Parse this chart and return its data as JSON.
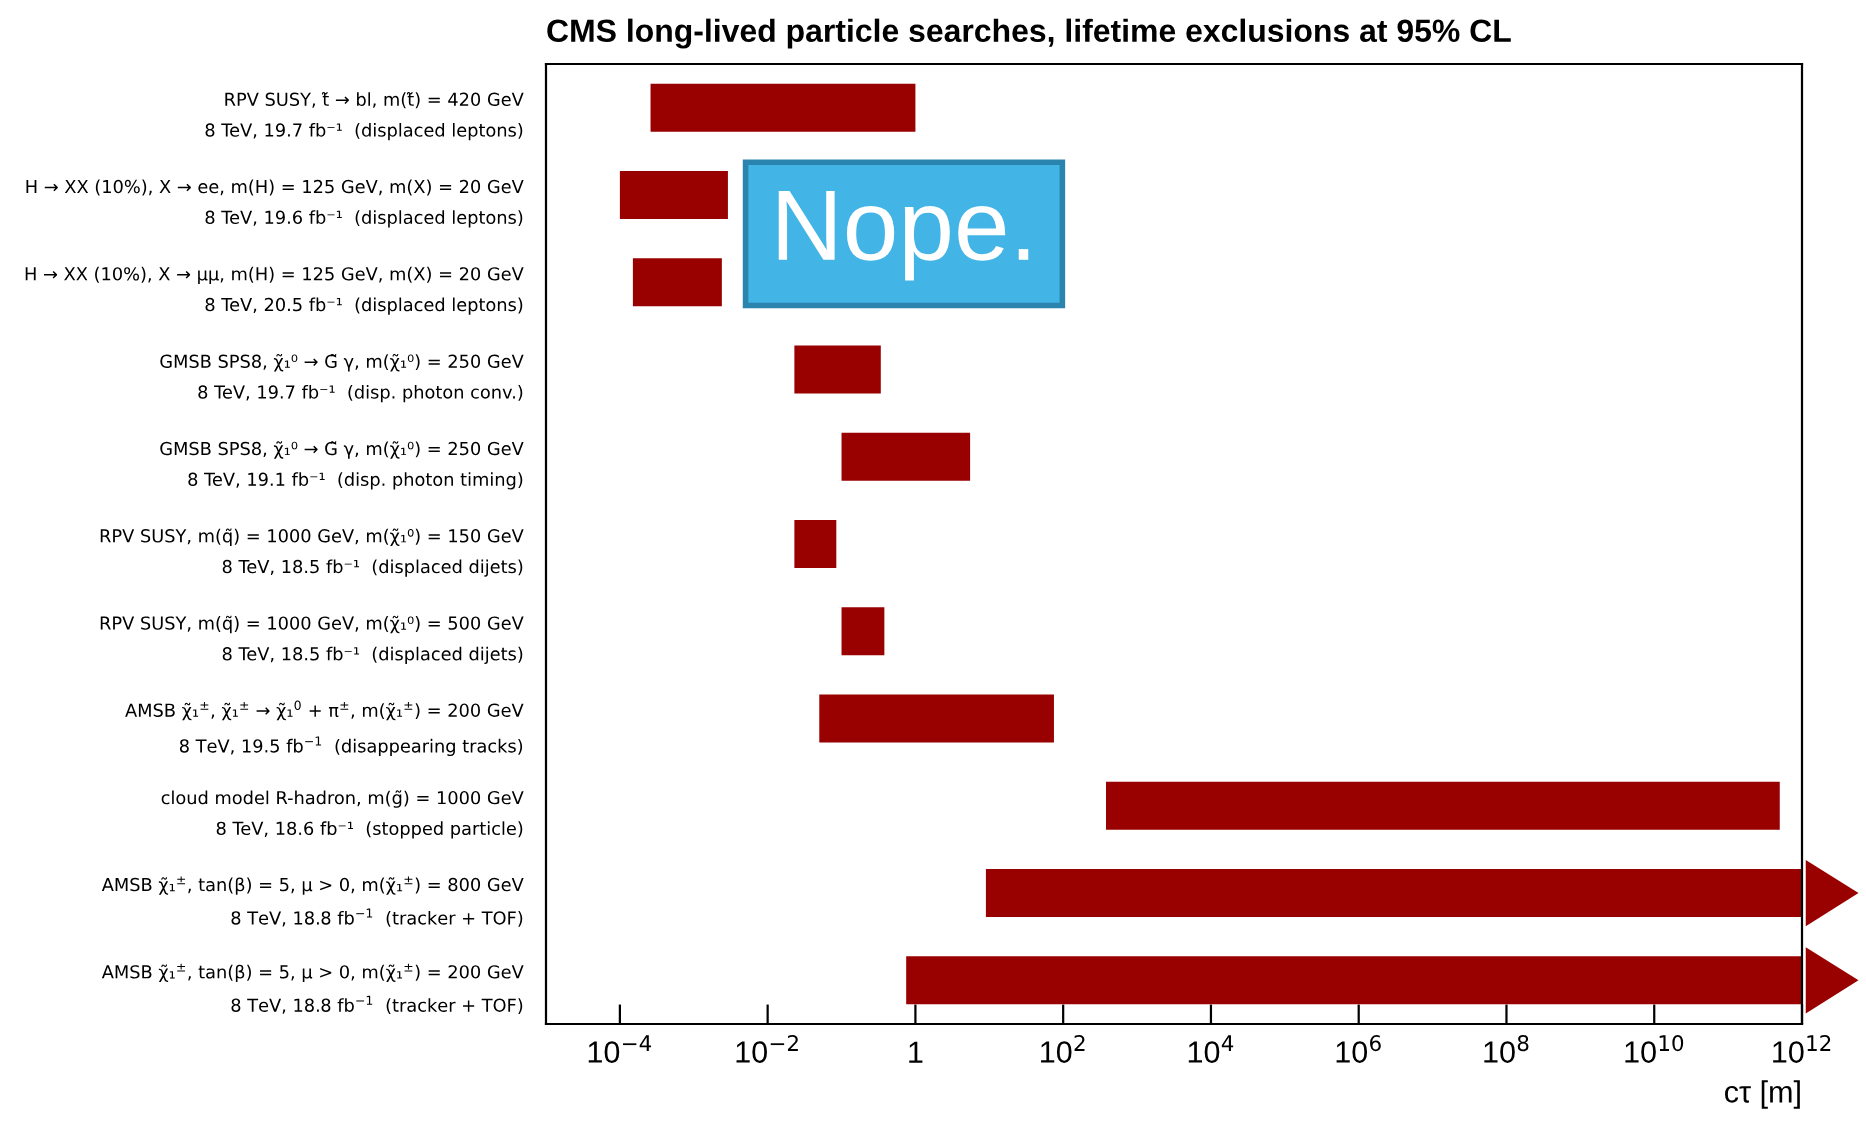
{
  "chart_data": {
    "type": "bar",
    "orientation": "horizontal",
    "title": "CMS long-lived particle searches, lifetime exclusions at 95% CL",
    "xlabel": "cτ [m]",
    "categories": [
      "RPV SUSY, t̃ → bl, m(t̃) = 420 GeV\n8 TeV, 19.7 fb⁻¹  (displaced leptons)",
      "H → XX (10%), X → ee, m(H) = 125 GeV, m(X) = 20 GeV\n8 TeV, 19.6 fb⁻¹  (displaced leptons)",
      "H → XX (10%), X → μμ, m(H) = 125 GeV, m(X) = 20 GeV\n8 TeV, 20.5 fb⁻¹  (displaced leptons)",
      "GMSB SPS8, χ̃₁⁰ → G̃ γ, m(χ̃₁⁰) = 250 GeV\n8 TeV, 19.7 fb⁻¹  (disp. photon conv.)",
      "GMSB SPS8, χ̃₁⁰ → G̃ γ, m(χ̃₁⁰) = 250 GeV\n8 TeV, 19.1 fb⁻¹  (disp. photon timing)",
      "RPV SUSY, m(q̃) = 1000 GeV, m(χ̃₁⁰) = 150 GeV\n8 TeV, 18.5 fb⁻¹  (displaced dijets)",
      "RPV SUSY, m(q̃) = 1000 GeV, m(χ̃₁⁰) = 500 GeV\n8 TeV, 18.5 fb⁻¹  (displaced dijets)",
      "AMSB χ̃₁$^{±}$, χ̃₁$^{±}$ → χ̃₁$^{0}$ + π$^{±}$, m(χ̃₁$^{±}$) = 200 GeV\n8 TeV, 19.5 fb$^{−1}$  (disappearing tracks)",
      "cloud model R-hadron, m(g̃) = 1000 GeV\n8 TeV, 18.6 fb⁻¹  (stopped particle)",
      "AMSB χ̃₁$^{±}$, tan(β) = 5, μ > 0, m(χ̃₁$^{±}$) = 800 GeV\n8 TeV, 18.8 fb$^{−1}$  (tracker + TOF)",
      "AMSB χ̃₁$^{±}$, tan(β) = 5, μ > 0, m(χ̃₁$^{±}$) = 200 GeV\n8 TeV, 18.8 fb$^{−1}$  (tracker + TOF)"
    ],
    "base": [
      0.00026,
      0.0001,
      0.00015,
      0.023,
      0.1,
      0.023,
      0.1,
      0.05,
      380,
      9,
      0.75
    ],
    "values": [
      0.99974,
      0.0028,
      0.00225,
      0.317,
      5.4,
      0.062,
      0.28,
      74.95,
      499999999620,
      999999999991,
      999999999999.25
    ],
    "color": "#990000",
    "log": "x",
    "xlim": [
      1e-05,
      1000000000000.0
    ],
    "xticks": [
      {
        "value": 0.0001,
        "label": "10$^{−4}$"
      },
      {
        "value": 0.01,
        "label": "10$^{−2}$"
      },
      1,
      {
        "value": 100,
        "label": "10$^{2}$"
      },
      {
        "value": 10000,
        "label": "10$^{4}$"
      },
      {
        "value": 1000000,
        "label": "10$^{6}$"
      },
      {
        "value": 100000000,
        "label": "10$^{8}$"
      },
      {
        "value": 10000000000,
        "label": "10$^{10}$"
      },
      {
        "value": 1000000000000,
        "label": "10$^{12}$"
      }
    ],
    "grid": false,
    "legend": false,
    "annotations": [
      "Nope."
    ]
  }
}
